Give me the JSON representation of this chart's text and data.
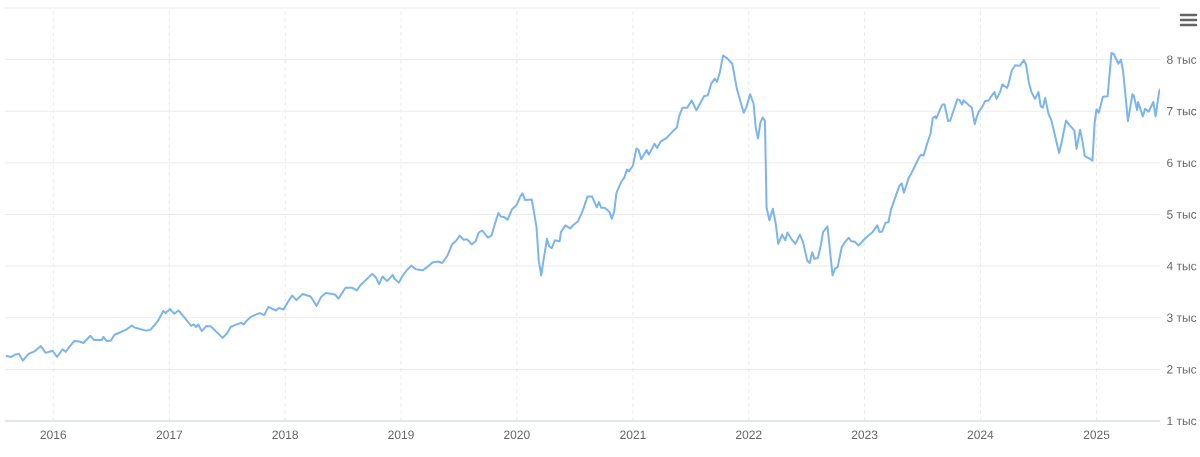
{
  "chart_data": {
    "type": "line",
    "color": "#7cb5ec",
    "line_style": "solid",
    "grid": true,
    "xlim": [
      "2015-08-02",
      "2025-07-20"
    ],
    "ylim": [
      1,
      9
    ],
    "xticks": [
      "2016",
      "2017",
      "2018",
      "2019",
      "2020",
      "2021",
      "2022",
      "2023",
      "2024",
      "2025"
    ],
    "yticks": [
      {
        "value": 1,
        "label": "1 тыс"
      },
      {
        "value": 2,
        "label": "2 тыс"
      },
      {
        "value": 3,
        "label": "3 тыс"
      },
      {
        "value": 4,
        "label": "4 тыс"
      },
      {
        "value": 5,
        "label": "5 тыс"
      },
      {
        "value": 6,
        "label": "6 тыс"
      },
      {
        "value": 7,
        "label": "7 тыс"
      },
      {
        "value": 8,
        "label": "8 тыс"
      },
      {
        "value": 9,
        "label": null
      }
    ],
    "x": [
      "2015-08-07",
      "2015-08-21",
      "2015-09-05",
      "2015-09-15",
      "2015-09-27",
      "2015-10-15",
      "2015-11-03",
      "2015-11-23",
      "2015-12-08",
      "2015-12-30",
      "2016-01-13",
      "2016-01-30",
      "2016-02-09",
      "2016-03-07",
      "2016-03-24",
      "2016-04-05",
      "2016-04-27",
      "2016-05-08",
      "2016-06-02",
      "2016-06-07",
      "2016-06-17",
      "2016-07-01",
      "2016-07-12",
      "2016-07-27",
      "2016-08-18",
      "2016-09-05",
      "2016-09-13",
      "2016-10-19",
      "2016-11-03",
      "2016-11-17",
      "2016-11-28",
      "2016-12-13",
      "2016-12-20",
      "2017-01-03",
      "2017-01-16",
      "2017-01-30",
      "2017-02-21",
      "2017-03-11",
      "2017-03-19",
      "2017-03-26",
      "2017-04-02",
      "2017-04-13",
      "2017-04-28",
      "2017-05-12",
      "2017-06-18",
      "2017-07-02",
      "2017-07-13",
      "2017-08-01",
      "2017-08-15",
      "2017-08-23",
      "2017-09-03",
      "2017-09-14",
      "2017-09-30",
      "2017-10-13",
      "2017-10-27",
      "2017-11-09",
      "2017-12-03",
      "2017-12-12",
      "2017-12-27",
      "2018-01-09",
      "2018-01-23",
      "2018-02-05",
      "2018-02-25",
      "2018-03-22",
      "2018-04-10",
      "2018-04-24",
      "2018-05-09",
      "2018-06-07",
      "2018-06-18",
      "2018-07-10",
      "2018-08-01",
      "2018-08-15",
      "2018-08-26",
      "2018-10-02",
      "2018-10-13",
      "2018-10-24",
      "2018-11-04",
      "2018-11-18",
      "2018-12-06",
      "2018-12-11",
      "2018-12-25",
      "2019-01-05",
      "2019-01-19",
      "2019-02-03",
      "2019-02-17",
      "2019-03-11",
      "2019-03-22",
      "2019-04-10",
      "2019-04-28",
      "2019-05-11",
      "2019-05-27",
      "2019-06-11",
      "2019-06-25",
      "2019-07-05",
      "2019-07-17",
      "2019-07-28",
      "2019-08-12",
      "2019-08-24",
      "2019-09-03",
      "2019-09-14",
      "2019-10-02",
      "2019-10-13",
      "2019-10-24",
      "2019-11-04",
      "2019-11-11",
      "2019-11-22",
      "2019-12-03",
      "2019-12-17",
      "2020-01-01",
      "2020-01-12",
      "2020-01-19",
      "2020-01-27",
      "2020-02-17",
      "2020-03-03",
      "2020-03-10",
      "2020-03-18",
      "2020-03-25",
      "2020-04-05",
      "2020-04-12",
      "2020-04-20",
      "2020-04-30",
      "2020-05-15",
      "2020-05-19",
      "2020-06-02",
      "2020-06-17",
      "2020-06-28",
      "2020-07-12",
      "2020-07-27",
      "2020-08-11",
      "2020-08-25",
      "2020-09-09",
      "2020-09-16",
      "2020-09-23",
      "2020-10-04",
      "2020-10-19",
      "2020-10-26",
      "2020-11-03",
      "2020-11-10",
      "2020-11-25",
      "2020-12-05",
      "2020-12-13",
      "2020-12-20",
      "2021-01-01",
      "2021-01-12",
      "2021-01-19",
      "2021-01-27",
      "2021-02-13",
      "2021-02-20",
      "2021-03-10",
      "2021-03-18",
      "2021-03-29",
      "2021-04-16",
      "2021-05-08",
      "2021-05-19",
      "2021-05-26",
      "2021-06-06",
      "2021-06-21",
      "2021-07-05",
      "2021-07-20",
      "2021-08-13",
      "2021-08-25",
      "2021-09-05",
      "2021-09-16",
      "2021-09-23",
      "2021-10-01",
      "2021-10-12",
      "2021-10-26",
      "2021-11-10",
      "2021-11-25",
      "2021-12-16",
      "2021-12-24",
      "2022-01-05",
      "2022-01-16",
      "2022-01-23",
      "2022-01-30",
      "2022-02-07",
      "2022-02-14",
      "2022-02-21",
      "2022-02-26",
      "2022-03-07",
      "2022-03-18",
      "2022-03-27",
      "2022-04-04",
      "2022-04-16",
      "2022-04-26",
      "2022-05-03",
      "2022-05-15",
      "2022-05-28",
      "2022-06-11",
      "2022-06-21",
      "2022-07-04",
      "2022-07-12",
      "2022-07-20",
      "2022-07-27",
      "2022-08-07",
      "2022-08-16",
      "2022-08-23",
      "2022-09-06",
      "2022-09-22",
      "2022-09-30",
      "2022-10-08",
      "2022-10-21",
      "2022-11-01",
      "2022-11-12",
      "2022-11-20",
      "2022-12-02",
      "2022-12-13",
      "2023-01-02",
      "2023-01-16",
      "2023-01-25",
      "2023-02-10",
      "2023-02-17",
      "2023-02-25",
      "2023-03-08",
      "2023-03-17",
      "2023-03-26",
      "2023-04-10",
      "2023-04-21",
      "2023-04-28",
      "2023-05-05",
      "2023-05-20",
      "2023-05-27",
      "2023-06-07",
      "2023-06-22",
      "2023-06-29",
      "2023-07-06",
      "2023-07-17",
      "2023-07-28",
      "2023-08-04",
      "2023-08-12",
      "2023-08-15",
      "2023-08-26",
      "2023-09-03",
      "2023-09-10",
      "2023-09-21",
      "2023-09-28",
      "2023-10-20",
      "2023-10-27",
      "2023-11-04",
      "2023-11-09",
      "2023-11-18",
      "2023-12-05",
      "2023-12-14",
      "2023-12-20",
      "2023-12-27",
      "2024-01-08",
      "2024-01-16",
      "2024-01-27",
      "2024-02-03",
      "2024-02-14",
      "2024-02-21",
      "2024-03-03",
      "2024-03-10",
      "2024-03-25",
      "2024-03-29",
      "2024-04-09",
      "2024-04-20",
      "2024-05-04",
      "2024-05-17",
      "2024-05-24",
      "2024-06-02",
      "2024-06-10",
      "2024-06-21",
      "2024-07-02",
      "2024-07-09",
      "2024-07-16",
      "2024-07-23",
      "2024-08-03",
      "2024-08-11",
      "2024-08-22",
      "2024-09-05",
      "2024-09-13",
      "2024-09-27",
      "2024-10-08",
      "2024-10-23",
      "2024-10-30",
      "2024-11-10",
      "2024-11-17",
      "2024-11-25",
      "2024-12-11",
      "2024-12-19",
      "2024-12-26",
      "2025-01-01",
      "2025-01-08",
      "2025-01-21",
      "2025-02-05",
      "2025-02-17",
      "2025-02-25",
      "2025-03-11",
      "2025-03-19",
      "2025-03-26",
      "2025-04-10",
      "2025-04-24",
      "2025-04-28",
      "2025-05-09",
      "2025-05-12",
      "2025-05-27",
      "2025-06-03",
      "2025-06-14",
      "2025-06-29",
      "2025-07-06",
      "2025-07-17",
      "2025-07-20"
    ],
    "values": [
      2.26,
      2.24,
      2.29,
      2.3,
      2.17,
      2.3,
      2.35,
      2.45,
      2.32,
      2.36,
      2.24,
      2.39,
      2.34,
      2.55,
      2.54,
      2.51,
      2.65,
      2.57,
      2.57,
      2.63,
      2.55,
      2.56,
      2.67,
      2.71,
      2.77,
      2.85,
      2.81,
      2.75,
      2.77,
      2.87,
      2.96,
      3.13,
      3.09,
      3.17,
      3.08,
      3.14,
      2.98,
      2.84,
      2.87,
      2.82,
      2.87,
      2.74,
      2.84,
      2.83,
      2.61,
      2.7,
      2.82,
      2.87,
      2.9,
      2.87,
      2.95,
      3.01,
      3.06,
      3.09,
      3.05,
      3.21,
      3.14,
      3.19,
      3.16,
      3.3,
      3.43,
      3.34,
      3.46,
      3.41,
      3.23,
      3.4,
      3.48,
      3.45,
      3.37,
      3.58,
      3.58,
      3.53,
      3.63,
      3.85,
      3.79,
      3.65,
      3.8,
      3.71,
      3.83,
      3.76,
      3.68,
      3.8,
      3.92,
      4.01,
      3.94,
      3.92,
      3.97,
      4.07,
      4.09,
      4.06,
      4.2,
      4.42,
      4.5,
      4.59,
      4.51,
      4.52,
      4.42,
      4.48,
      4.65,
      4.69,
      4.55,
      4.59,
      4.82,
      5.03,
      4.96,
      4.95,
      4.9,
      5.1,
      5.19,
      5.35,
      5.41,
      5.28,
      5.29,
      4.76,
      4.11,
      3.82,
      4.11,
      4.53,
      4.38,
      4.35,
      4.5,
      4.48,
      4.66,
      4.79,
      4.73,
      4.8,
      4.87,
      5.08,
      5.35,
      5.35,
      5.14,
      5.24,
      5.13,
      5.13,
      5.05,
      4.92,
      5.06,
      5.42,
      5.63,
      5.72,
      5.87,
      5.84,
      5.95,
      6.28,
      6.25,
      6.07,
      6.25,
      6.16,
      6.37,
      6.29,
      6.41,
      6.48,
      6.62,
      6.68,
      6.89,
      7.07,
      7.07,
      7.21,
      7.02,
      7.29,
      7.31,
      7.54,
      7.63,
      7.57,
      7.73,
      8.08,
      8.02,
      7.92,
      7.42,
      6.97,
      7.07,
      7.33,
      7.15,
      6.68,
      6.47,
      6.79,
      6.88,
      6.81,
      5.14,
      4.89,
      5.11,
      4.82,
      4.43,
      4.61,
      4.5,
      4.65,
      4.53,
      4.43,
      4.61,
      4.47,
      4.11,
      4.06,
      4.27,
      4.14,
      4.16,
      4.4,
      4.66,
      4.77,
      3.82,
      3.95,
      3.98,
      4.37,
      4.47,
      4.55,
      4.48,
      4.47,
      4.4,
      4.53,
      4.61,
      4.65,
      4.79,
      4.66,
      4.67,
      4.84,
      4.85,
      5.11,
      5.37,
      5.56,
      5.6,
      5.42,
      5.71,
      5.78,
      5.92,
      6.11,
      6.16,
      6.14,
      6.37,
      6.57,
      6.87,
      6.9,
      6.86,
      7.02,
      7.13,
      7.13,
      6.81,
      6.82,
      7.23,
      7.22,
      7.13,
      7.21,
      7.16,
      7.07,
      6.75,
      6.88,
      6.99,
      7.1,
      7.2,
      7.21,
      7.28,
      7.37,
      7.24,
      7.37,
      7.52,
      7.45,
      7.52,
      7.79,
      7.89,
      7.88,
      7.99,
      7.9,
      7.55,
      7.37,
      7.24,
      7.37,
      7.1,
      7.07,
      7.26,
      6.94,
      6.84,
      6.56,
      6.19,
      6.4,
      6.82,
      6.73,
      6.63,
      6.27,
      6.64,
      6.44,
      6.13,
      6.08,
      6.04,
      6.77,
      7.04,
      6.97,
      7.28,
      7.29,
      8.13,
      8.1,
      7.92,
      8.0,
      7.76,
      6.81,
      7.33,
      7.31,
      7.02,
      7.18,
      6.9,
      7.05,
      6.99,
      7.18,
      6.9,
      7.37,
      7.42
    ]
  }
}
